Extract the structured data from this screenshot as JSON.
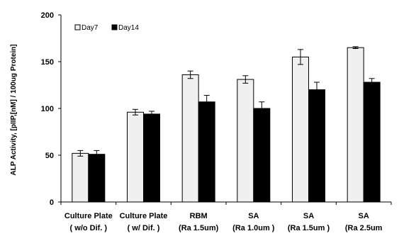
{
  "chart_data": {
    "type": "bar",
    "ylabel": "ALP Activity, [pIIP,[nM] / 100ug Protein]",
    "ylim": [
      0,
      200
    ],
    "yticks": [
      0,
      50,
      100,
      150,
      200
    ],
    "categories": [
      {
        "line1": "Culture Plate",
        "line2": "( w/o Dif. )"
      },
      {
        "line1": "Culture Plate",
        "line2": "( w/ Dif. )"
      },
      {
        "line1": "RBM",
        "line2": "(Ra 1.5um)"
      },
      {
        "line1": "SA",
        "line2": "(Ra 1.0um )"
      },
      {
        "line1": "SA",
        "line2": "(Ra 1.5um )"
      },
      {
        "line1": "SA",
        "line2": "(Ra 2.5um"
      }
    ],
    "series": [
      {
        "name": "Day7",
        "color": "#f0f0f0",
        "values": [
          52,
          96,
          136,
          131,
          155,
          165
        ],
        "errors": [
          3,
          3,
          4,
          4,
          8,
          1
        ]
      },
      {
        "name": "Day14",
        "color": "#000000",
        "values": [
          51,
          94,
          107,
          100,
          120,
          128
        ],
        "errors": [
          4,
          3,
          7,
          7,
          8,
          4
        ]
      }
    ],
    "grid": false,
    "legend_position": "top-left"
  }
}
